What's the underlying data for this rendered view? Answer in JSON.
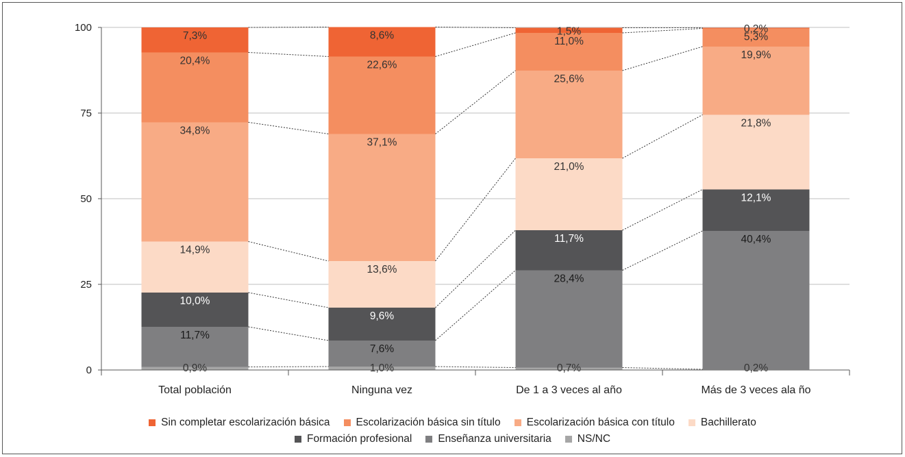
{
  "chart_data": {
    "type": "bar",
    "stacked": true,
    "title": "",
    "xlabel": "",
    "ylabel": "",
    "ylim": [
      0,
      100
    ],
    "yticks": [
      0,
      25,
      50,
      75,
      100
    ],
    "grid": true,
    "legend_position": "bottom",
    "connector_lines": "dotted",
    "categories": [
      "Total población",
      "Ninguna vez",
      "De 1 a 3 veces al año",
      "Más de 3 veces ala ño"
    ],
    "series": [
      {
        "name": "NS/NC",
        "color": "#a6a6a6",
        "label_color": "#333333",
        "values": [
          0.9,
          1.0,
          0.7,
          0.2
        ],
        "labels": [
          "0,9%",
          "1,0%",
          "0,7%",
          "0,2%"
        ]
      },
      {
        "name": "Enseñanza universitaria",
        "color": "#7f7f81",
        "label_color": "#1a1a1a",
        "values": [
          11.7,
          7.6,
          28.4,
          40.4
        ],
        "labels": [
          "11,7%",
          "7,6%",
          "28,4%",
          "40,4%"
        ]
      },
      {
        "name": "Formación profesional",
        "color": "#545456",
        "label_color": "#ffffff",
        "values": [
          10.0,
          9.6,
          11.7,
          12.1
        ],
        "labels": [
          "10,0%",
          "9,6%",
          "11,7%",
          "12,1%"
        ]
      },
      {
        "name": "Bachillerato",
        "color": "#fcdac6",
        "label_color": "#333333",
        "values": [
          14.9,
          13.6,
          21.0,
          21.8
        ],
        "labels": [
          "14,9%",
          "13,6%",
          "21,0%",
          "21,8%"
        ]
      },
      {
        "name": "Escolarización básica con título",
        "color": "#f8ab85",
        "label_color": "#333333",
        "values": [
          34.8,
          37.1,
          25.6,
          19.9
        ],
        "labels": [
          "34,8%",
          "37,1%",
          "25,6%",
          "19,9%"
        ]
      },
      {
        "name": "Escolarización básica sin título",
        "color": "#f48e60",
        "label_color": "#333333",
        "values": [
          20.4,
          22.6,
          11.0,
          5.3
        ],
        "labels": [
          "20,4%",
          "22,6%",
          "11,0%",
          "5,3%"
        ]
      },
      {
        "name": "Sin completar escolarización básica",
        "color": "#ef6434",
        "label_color": "#333333",
        "values": [
          7.3,
          8.6,
          1.5,
          0.2
        ],
        "labels": [
          "7,3%",
          "8,6%",
          "1,5%",
          "0,2%"
        ]
      }
    ],
    "legend_rows": [
      [
        "Sin completar escolarización básica",
        "Escolarización básica sin título",
        "Escolarización básica con título",
        "Bachillerato"
      ],
      [
        "Formación profesional",
        "Enseñanza universitaria",
        "NS/NC"
      ]
    ]
  }
}
